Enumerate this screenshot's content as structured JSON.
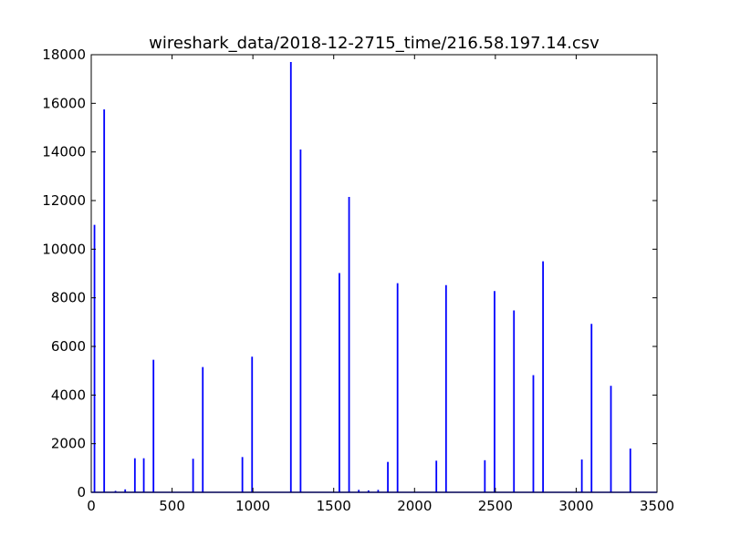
{
  "chart_data": {
    "type": "bar",
    "title": "wireshark_data/2018-12-2715_time/216.58.197.14.csv",
    "xlabel": "",
    "ylabel": "",
    "xlim": [
      0,
      3500
    ],
    "ylim": [
      0,
      18000
    ],
    "xticks": [
      0,
      500,
      1000,
      1500,
      2000,
      2500,
      3000,
      3500
    ],
    "yticks": [
      0,
      2000,
      4000,
      6000,
      8000,
      10000,
      12000,
      14000,
      16000,
      18000
    ],
    "grid": false,
    "series_color": "#0000ff",
    "points": [
      {
        "x": 20,
        "y": 11000
      },
      {
        "x": 80,
        "y": 15750
      },
      {
        "x": 150,
        "y": 60
      },
      {
        "x": 210,
        "y": 120
      },
      {
        "x": 270,
        "y": 1400
      },
      {
        "x": 325,
        "y": 1400
      },
      {
        "x": 385,
        "y": 5450
      },
      {
        "x": 630,
        "y": 1380
      },
      {
        "x": 690,
        "y": 5150
      },
      {
        "x": 935,
        "y": 1450
      },
      {
        "x": 995,
        "y": 5580
      },
      {
        "x": 1235,
        "y": 17700
      },
      {
        "x": 1295,
        "y": 14100
      },
      {
        "x": 1535,
        "y": 9020
      },
      {
        "x": 1595,
        "y": 12150
      },
      {
        "x": 1655,
        "y": 100
      },
      {
        "x": 1715,
        "y": 80
      },
      {
        "x": 1775,
        "y": 100
      },
      {
        "x": 1835,
        "y": 1250
      },
      {
        "x": 1895,
        "y": 8600
      },
      {
        "x": 2135,
        "y": 1300
      },
      {
        "x": 2195,
        "y": 8520
      },
      {
        "x": 2435,
        "y": 1320
      },
      {
        "x": 2495,
        "y": 8280
      },
      {
        "x": 2615,
        "y": 7480
      },
      {
        "x": 2735,
        "y": 4820
      },
      {
        "x": 2795,
        "y": 9500
      },
      {
        "x": 3035,
        "y": 1350
      },
      {
        "x": 3095,
        "y": 6930
      },
      {
        "x": 3215,
        "y": 4380
      },
      {
        "x": 3335,
        "y": 1800
      }
    ]
  }
}
